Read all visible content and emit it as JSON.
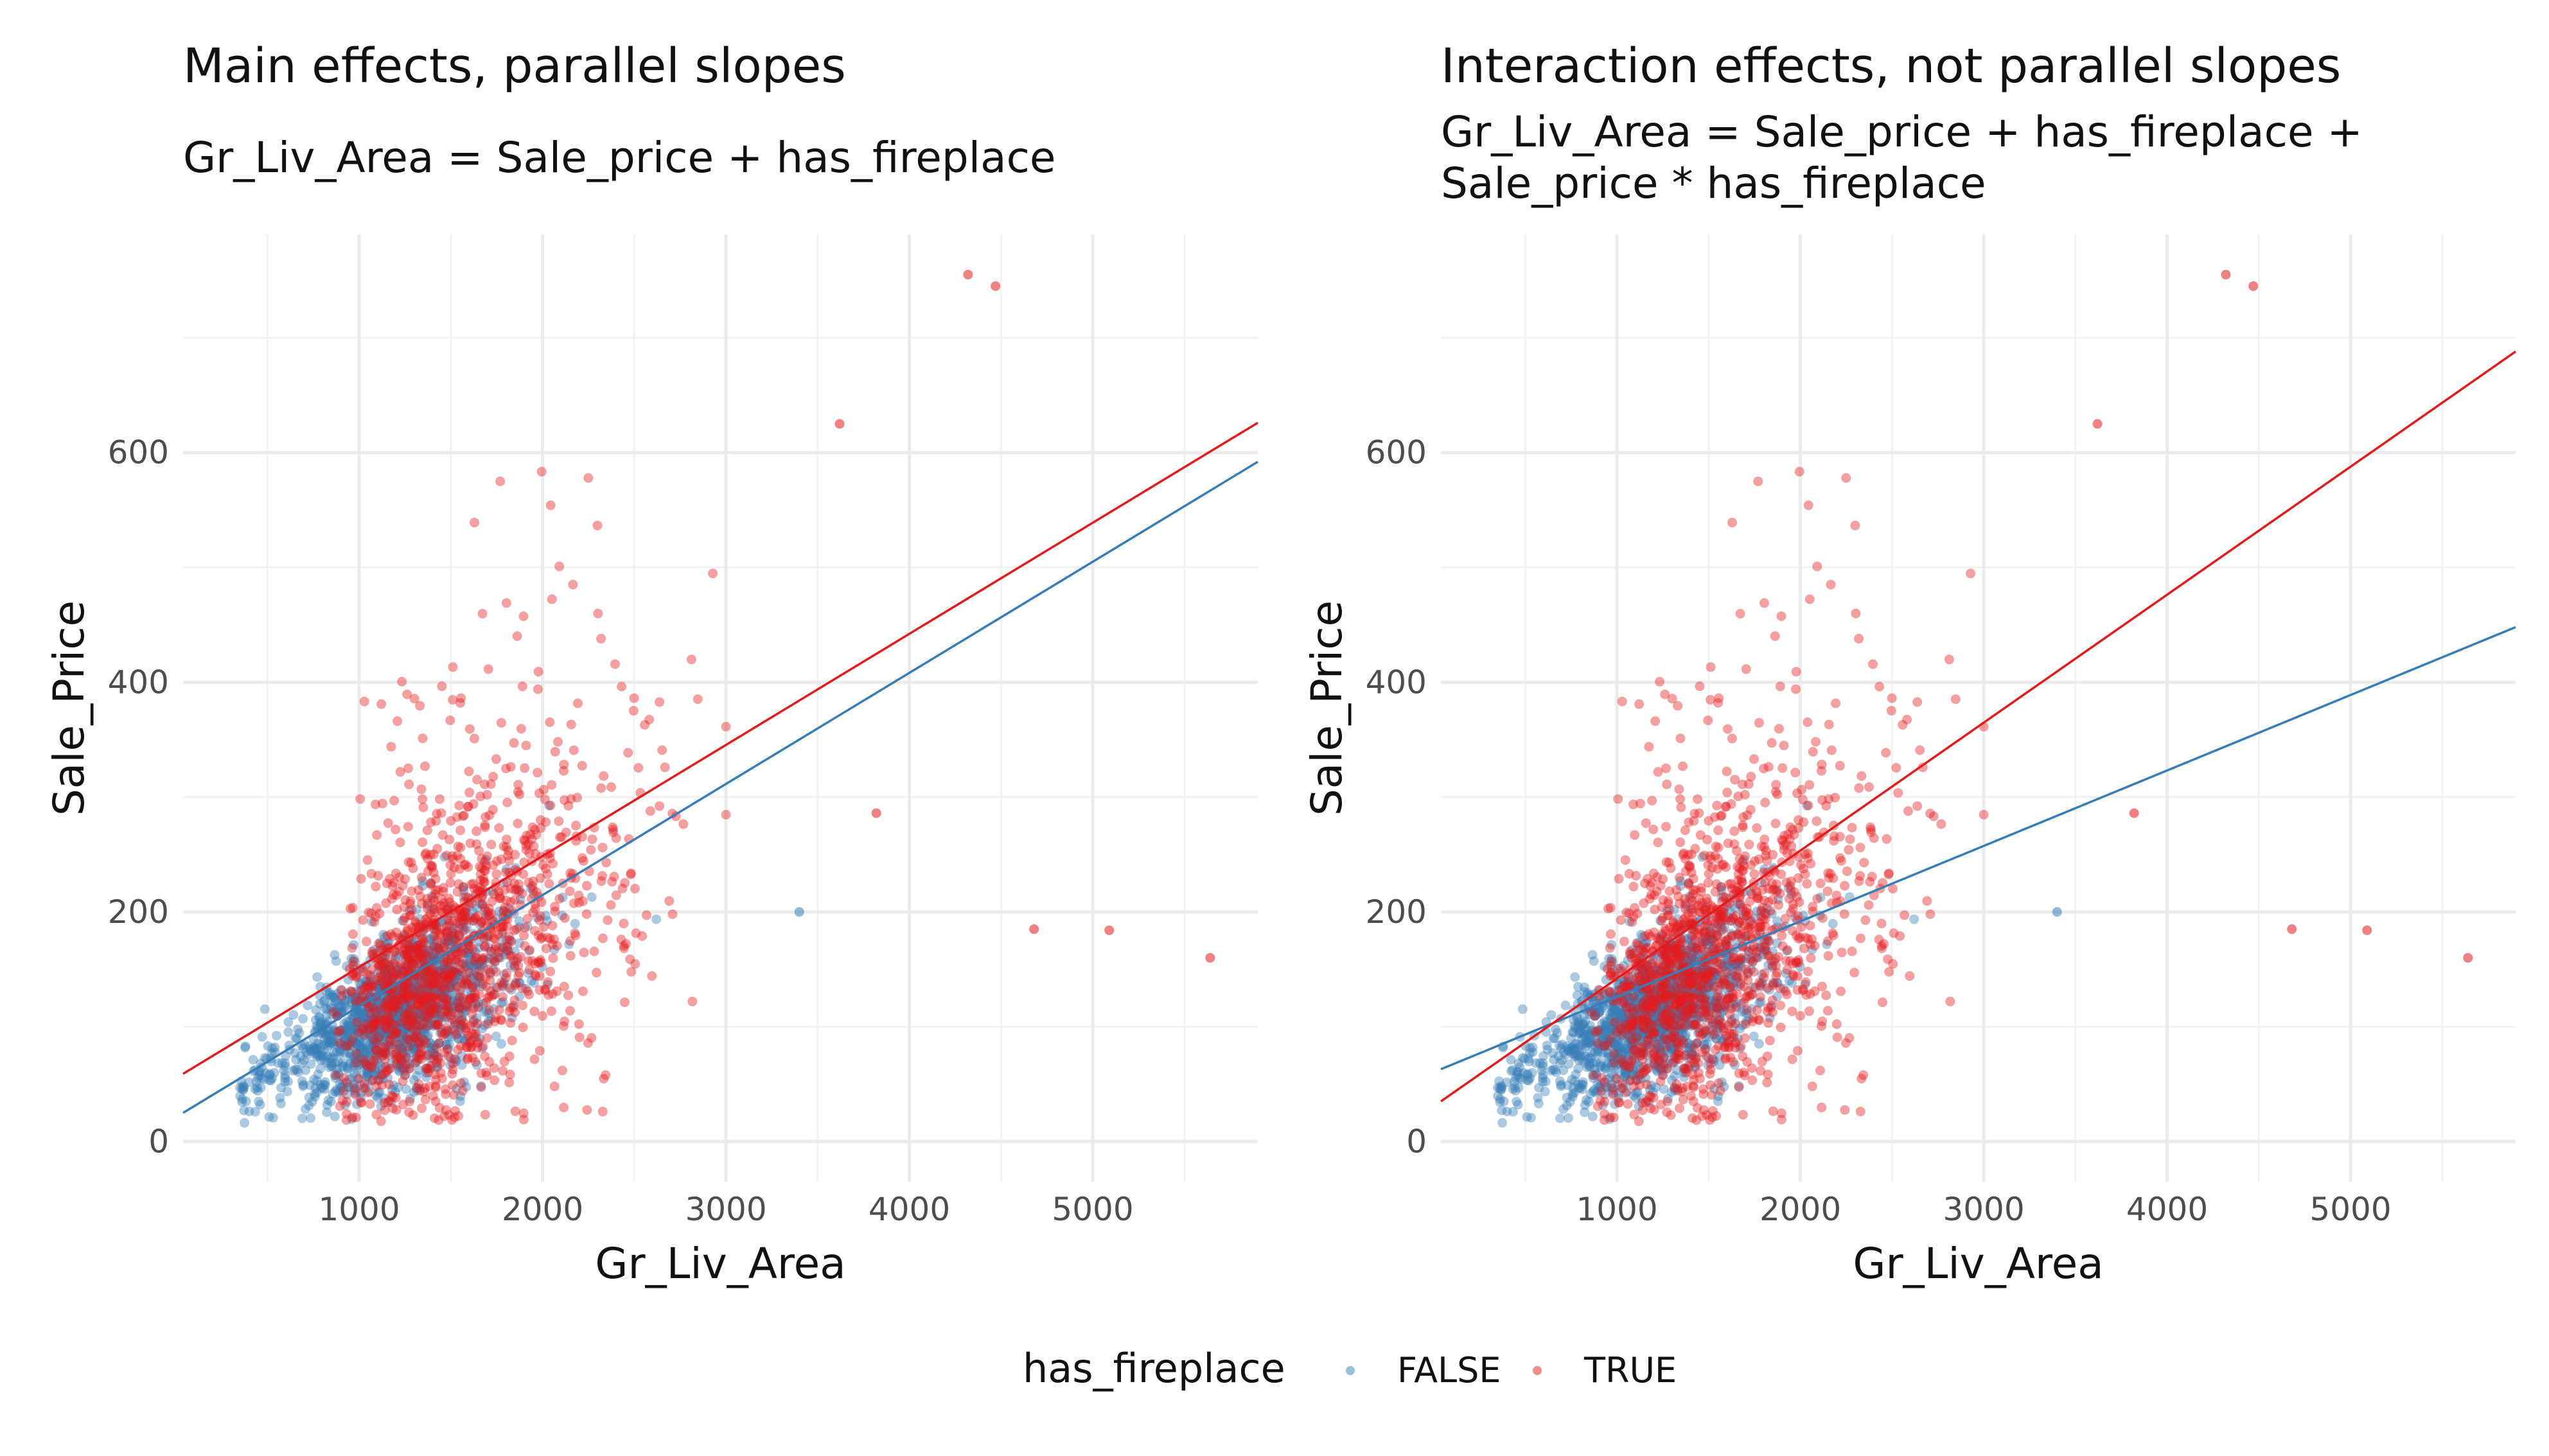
{
  "legend": {
    "title": "has_fireplace",
    "entries": [
      {
        "label": "FALSE",
        "color": "#377eb8"
      },
      {
        "label": "TRUE",
        "color": "#e41a1c"
      }
    ]
  },
  "chart_data": [
    {
      "type": "scatter",
      "title": "Main effects, parallel slopes",
      "subtitle": [
        "Gr_Liv_Area = Sale_price + has_fireplace"
      ],
      "xlabel": "Gr_Liv_Area",
      "ylabel": "Sale_Price",
      "xlim": [
        40,
        5900
      ],
      "ylim": [
        -35,
        790
      ],
      "xticks": [
        1000,
        2000,
        3000,
        4000,
        5000
      ],
      "yticks": [
        0,
        200,
        400,
        600
      ],
      "grid": true,
      "legend_position": "bottom",
      "fit_lines": [
        {
          "name": "FALSE",
          "color": "#377eb8",
          "x": [
            40,
            5900
          ],
          "y": [
            25,
            592
          ]
        },
        {
          "name": "TRUE",
          "color": "#e41a1c",
          "x": [
            40,
            5900
          ],
          "y": [
            59,
            626
          ]
        }
      ],
      "outliers": [
        {
          "x": 4320,
          "y": 755,
          "group": "TRUE"
        },
        {
          "x": 4470,
          "y": 745,
          "group": "TRUE"
        },
        {
          "x": 3620,
          "y": 625,
          "group": "TRUE"
        },
        {
          "x": 4680,
          "y": 185,
          "group": "TRUE"
        },
        {
          "x": 5090,
          "y": 184,
          "group": "TRUE"
        },
        {
          "x": 5640,
          "y": 160,
          "group": "TRUE"
        },
        {
          "x": 3820,
          "y": 286,
          "group": "TRUE"
        },
        {
          "x": 3400,
          "y": 200,
          "group": "FALSE"
        }
      ]
    },
    {
      "type": "scatter",
      "title": "Interaction effects, not parallel slopes",
      "subtitle": [
        "Gr_Liv_Area = Sale_price + has_fireplace +",
        "Sale_price * has_fireplace"
      ],
      "xlabel": "Gr_Liv_Area",
      "ylabel": "Sale_Price",
      "xlim": [
        40,
        5900
      ],
      "ylim": [
        -35,
        790
      ],
      "xticks": [
        1000,
        2000,
        3000,
        4000,
        5000
      ],
      "yticks": [
        0,
        200,
        400,
        600
      ],
      "grid": true,
      "legend_position": "bottom",
      "fit_lines": [
        {
          "name": "FALSE",
          "color": "#377eb8",
          "x": [
            40,
            5900
          ],
          "y": [
            63,
            448
          ]
        },
        {
          "name": "TRUE",
          "color": "#e41a1c",
          "x": [
            40,
            5900
          ],
          "y": [
            35,
            688
          ]
        }
      ],
      "outliers": [
        {
          "x": 4320,
          "y": 755,
          "group": "TRUE"
        },
        {
          "x": 4470,
          "y": 745,
          "group": "TRUE"
        },
        {
          "x": 3620,
          "y": 625,
          "group": "TRUE"
        },
        {
          "x": 4680,
          "y": 185,
          "group": "TRUE"
        },
        {
          "x": 5090,
          "y": 184,
          "group": "TRUE"
        },
        {
          "x": 5640,
          "y": 160,
          "group": "TRUE"
        },
        {
          "x": 3820,
          "y": 286,
          "group": "TRUE"
        },
        {
          "x": 3400,
          "y": 200,
          "group": "FALSE"
        }
      ]
    }
  ]
}
